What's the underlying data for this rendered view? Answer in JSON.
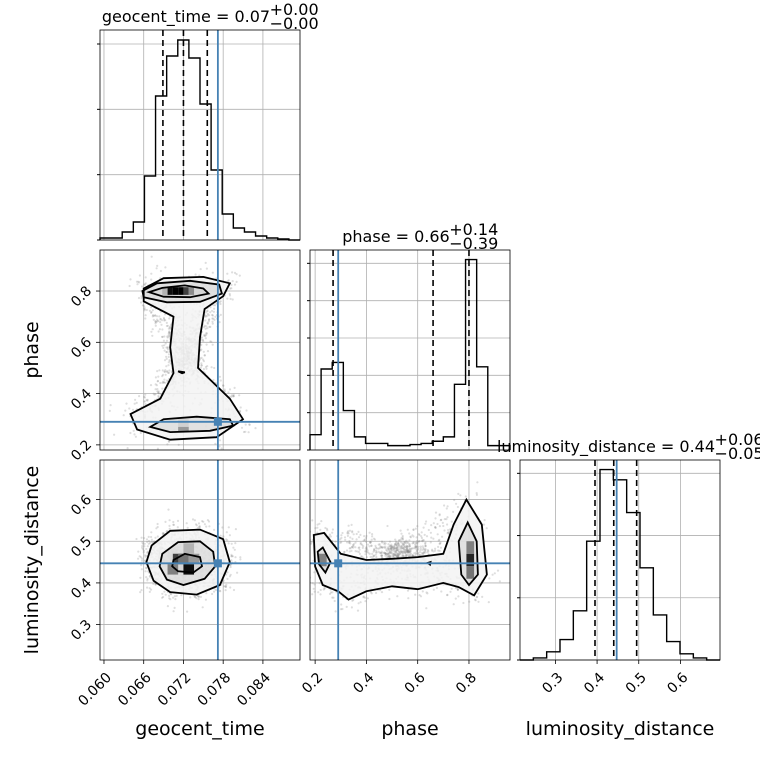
{
  "chart_data": {
    "type": "corner",
    "truth_color": "#4682b4",
    "parameters": [
      {
        "name": "geocent_time",
        "title": "geocent_time = 0.07",
        "median": 0.072,
        "q_low": 0.0689,
        "q_high": 0.0756,
        "err_plus": "+0.00",
        "err_minus": "−0.00",
        "truth": 0.0772,
        "range": [
          0.0594,
          0.0896
        ],
        "ticks": [
          0.06,
          0.066,
          0.072,
          0.078,
          0.084
        ],
        "tick_labels": [
          "0.060",
          "0.066",
          "0.072",
          "0.078",
          "0.084"
        ],
        "hist": [
          0.01,
          0.01,
          0.04,
          0.09,
          0.32,
          0.72,
          0.92,
          1.0,
          0.91,
          0.68,
          0.35,
          0.13,
          0.06,
          0.04,
          0.02,
          0.01,
          0.005,
          0.0
        ],
        "diag_ticks": [
          0,
          0.3,
          0.6,
          0.9
        ]
      },
      {
        "name": "phase",
        "title": "phase = 0.66",
        "median": 0.66,
        "q_low": 0.27,
        "q_high": 0.8,
        "err_plus": "+0.14",
        "err_minus": "−0.39",
        "truth": 0.29,
        "range": [
          0.18,
          0.96
        ],
        "ticks": [
          0.2,
          0.4,
          0.6,
          0.8
        ],
        "tick_labels": [
          "0.2",
          "0.4",
          "0.6",
          "0.8"
        ],
        "hist": [
          0.07,
          0.37,
          0.4,
          0.18,
          0.06,
          0.03,
          0.03,
          0.02,
          0.02,
          0.025,
          0.03,
          0.04,
          0.06,
          0.3,
          0.87,
          0.38,
          0.02,
          0.02
        ],
        "diag_ticks": [
          0.0,
          0.14,
          0.28,
          0.42,
          0.56,
          0.7
        ]
      },
      {
        "name": "luminosity_distance",
        "title": "luminosity_distance = 0.44",
        "median": 0.44,
        "q_low": 0.395,
        "q_high": 0.495,
        "err_plus": "+0.06",
        "err_minus": "−0.05",
        "truth": 0.447,
        "range": [
          0.215,
          0.695
        ],
        "ticks": [
          0.3,
          0.4,
          0.5,
          0.6
        ],
        "tick_labels": [
          "0.3",
          "0.4",
          "0.5",
          "0.6"
        ],
        "hist": [
          0.0,
          0.01,
          0.04,
          0.1,
          0.24,
          0.58,
          0.93,
          0.88,
          0.72,
          0.45,
          0.22,
          0.09,
          0.03,
          0.01,
          0.0
        ],
        "diag_ticks": [
          0,
          0.25,
          0.5,
          0.75
        ]
      }
    ],
    "contours": {
      "phase_vs_geocent_time": [
        [
          [
            0.0668,
            0.796
          ],
          [
            0.0688,
            0.812
          ],
          [
            0.0722,
            0.822
          ],
          [
            0.075,
            0.81
          ],
          [
            0.0758,
            0.79
          ],
          [
            0.073,
            0.776
          ],
          [
            0.069,
            0.778
          ],
          [
            0.0668,
            0.796
          ]
        ],
        [
          [
            0.0658,
            0.8
          ],
          [
            0.068,
            0.83
          ],
          [
            0.073,
            0.84
          ],
          [
            0.0774,
            0.825
          ],
          [
            0.0778,
            0.79
          ],
          [
            0.0745,
            0.758
          ],
          [
            0.0695,
            0.756
          ],
          [
            0.066,
            0.776
          ],
          [
            0.0658,
            0.8
          ]
        ],
        [
          [
            0.066,
            0.81
          ],
          [
            0.069,
            0.85
          ],
          [
            0.075,
            0.855
          ],
          [
            0.079,
            0.83
          ],
          [
            0.078,
            0.78
          ],
          [
            0.0752,
            0.73
          ],
          [
            0.0745,
            0.62
          ],
          [
            0.0742,
            0.5
          ],
          [
            0.079,
            0.38
          ],
          [
            0.081,
            0.3
          ],
          [
            0.077,
            0.23
          ],
          [
            0.07,
            0.22
          ],
          [
            0.065,
            0.26
          ],
          [
            0.064,
            0.32
          ],
          [
            0.0685,
            0.38
          ],
          [
            0.0705,
            0.48
          ],
          [
            0.07,
            0.58
          ],
          [
            0.0705,
            0.7
          ],
          [
            0.066,
            0.76
          ],
          [
            0.066,
            0.81
          ]
        ],
        [
          [
            0.067,
            0.27
          ],
          [
            0.069,
            0.3
          ],
          [
            0.074,
            0.31
          ],
          [
            0.079,
            0.3
          ],
          [
            0.0795,
            0.275
          ],
          [
            0.076,
            0.255
          ],
          [
            0.07,
            0.25
          ],
          [
            0.067,
            0.27
          ]
        ],
        [
          [
            0.0712,
            0.487
          ],
          [
            0.0722,
            0.483
          ],
          [
            0.0718,
            0.479
          ],
          [
            0.0712,
            0.487
          ]
        ]
      ],
      "luminosity_distance_vs_geocent_time": [
        [
          [
            0.0705,
            0.455
          ],
          [
            0.0722,
            0.47
          ],
          [
            0.0745,
            0.462
          ],
          [
            0.0748,
            0.44
          ],
          [
            0.0735,
            0.425
          ],
          [
            0.0712,
            0.428
          ],
          [
            0.0703,
            0.44
          ],
          [
            0.0705,
            0.455
          ]
        ],
        [
          [
            0.0688,
            0.47
          ],
          [
            0.0712,
            0.498
          ],
          [
            0.0745,
            0.5
          ],
          [
            0.0765,
            0.475
          ],
          [
            0.0768,
            0.44
          ],
          [
            0.0752,
            0.41
          ],
          [
            0.072,
            0.395
          ],
          [
            0.0695,
            0.408
          ],
          [
            0.0684,
            0.44
          ],
          [
            0.0688,
            0.47
          ]
        ],
        [
          [
            0.0672,
            0.49
          ],
          [
            0.07,
            0.525
          ],
          [
            0.0745,
            0.528
          ],
          [
            0.078,
            0.505
          ],
          [
            0.079,
            0.45
          ],
          [
            0.0775,
            0.395
          ],
          [
            0.074,
            0.372
          ],
          [
            0.07,
            0.378
          ],
          [
            0.0675,
            0.405
          ],
          [
            0.0664,
            0.45
          ],
          [
            0.0672,
            0.49
          ]
        ]
      ],
      "luminosity_distance_vs_phase": [
        [
          [
            0.21,
            0.475
          ],
          [
            0.23,
            0.485
          ],
          [
            0.26,
            0.45
          ],
          [
            0.24,
            0.425
          ],
          [
            0.215,
            0.445
          ],
          [
            0.21,
            0.475
          ]
        ],
        [
          [
            0.195,
            0.515
          ],
          [
            0.235,
            0.52
          ],
          [
            0.3,
            0.47
          ],
          [
            0.4,
            0.455
          ],
          [
            0.5,
            0.458
          ],
          [
            0.6,
            0.462
          ],
          [
            0.7,
            0.47
          ],
          [
            0.74,
            0.54
          ],
          [
            0.79,
            0.6
          ],
          [
            0.85,
            0.54
          ],
          [
            0.87,
            0.42
          ],
          [
            0.82,
            0.37
          ],
          [
            0.76,
            0.39
          ],
          [
            0.7,
            0.4
          ],
          [
            0.6,
            0.385
          ],
          [
            0.5,
            0.392
          ],
          [
            0.4,
            0.38
          ],
          [
            0.33,
            0.36
          ],
          [
            0.29,
            0.38
          ],
          [
            0.23,
            0.395
          ],
          [
            0.2,
            0.44
          ],
          [
            0.195,
            0.515
          ]
        ],
        [
          [
            0.76,
            0.5
          ],
          [
            0.795,
            0.545
          ],
          [
            0.83,
            0.5
          ],
          [
            0.835,
            0.42
          ],
          [
            0.8,
            0.395
          ],
          [
            0.77,
            0.42
          ],
          [
            0.76,
            0.5
          ]
        ],
        [
          [
            0.64,
            0.448
          ],
          [
            0.65,
            0.45
          ],
          [
            0.648,
            0.444
          ],
          [
            0.64,
            0.448
          ]
        ]
      ]
    },
    "density_blocks": {
      "phase_vs_geocent_time": [
        {
          "x": [
            0.0696,
            0.0704
          ],
          "y": [
            0.785,
            0.815
          ],
          "level": 0.05
        },
        {
          "x": [
            0.0704,
            0.0712
          ],
          "y": [
            0.785,
            0.815
          ],
          "level": 0.0
        },
        {
          "x": [
            0.0712,
            0.072
          ],
          "y": [
            0.785,
            0.815
          ],
          "level": 0.0
        },
        {
          "x": [
            0.072,
            0.0728
          ],
          "y": [
            0.785,
            0.815
          ],
          "level": 0.25
        },
        {
          "x": [
            0.0728,
            0.0736
          ],
          "y": [
            0.785,
            0.815
          ],
          "level": 0.55
        },
        {
          "x": [
            0.0688,
            0.0696
          ],
          "y": [
            0.785,
            0.815
          ],
          "level": 0.7
        },
        {
          "x": [
            0.0712,
            0.0728
          ],
          "y": [
            0.27,
            0.3
          ],
          "level": 0.82
        },
        {
          "x": [
            0.0712,
            0.0728
          ],
          "y": [
            0.25,
            0.27
          ],
          "level": 0.6
        }
      ],
      "luminosity_distance_vs_geocent_time": [
        {
          "x": [
            0.0704,
            0.072
          ],
          "y": [
            0.445,
            0.47
          ],
          "level": 0.25
        },
        {
          "x": [
            0.072,
            0.0736
          ],
          "y": [
            0.42,
            0.445
          ],
          "level": 0.05
        },
        {
          "x": [
            0.0712,
            0.0728
          ],
          "y": [
            0.445,
            0.47
          ],
          "level": 0.45
        },
        {
          "x": [
            0.0696,
            0.0712
          ],
          "y": [
            0.42,
            0.445
          ],
          "level": 0.5
        },
        {
          "x": [
            0.0728,
            0.0744
          ],
          "y": [
            0.445,
            0.47
          ],
          "level": 0.6
        },
        {
          "x": [
            0.072,
            0.0736
          ],
          "y": [
            0.47,
            0.495
          ],
          "level": 0.7
        }
      ],
      "luminosity_distance_vs_phase": [
        {
          "x": [
            0.79,
            0.82
          ],
          "y": [
            0.44,
            0.47
          ],
          "level": 0.15
        },
        {
          "x": [
            0.79,
            0.82
          ],
          "y": [
            0.47,
            0.5
          ],
          "level": 0.5
        },
        {
          "x": [
            0.79,
            0.82
          ],
          "y": [
            0.41,
            0.44
          ],
          "level": 0.45
        },
        {
          "x": [
            0.215,
            0.245
          ],
          "y": [
            0.44,
            0.47
          ],
          "level": 0.5
        }
      ]
    }
  }
}
